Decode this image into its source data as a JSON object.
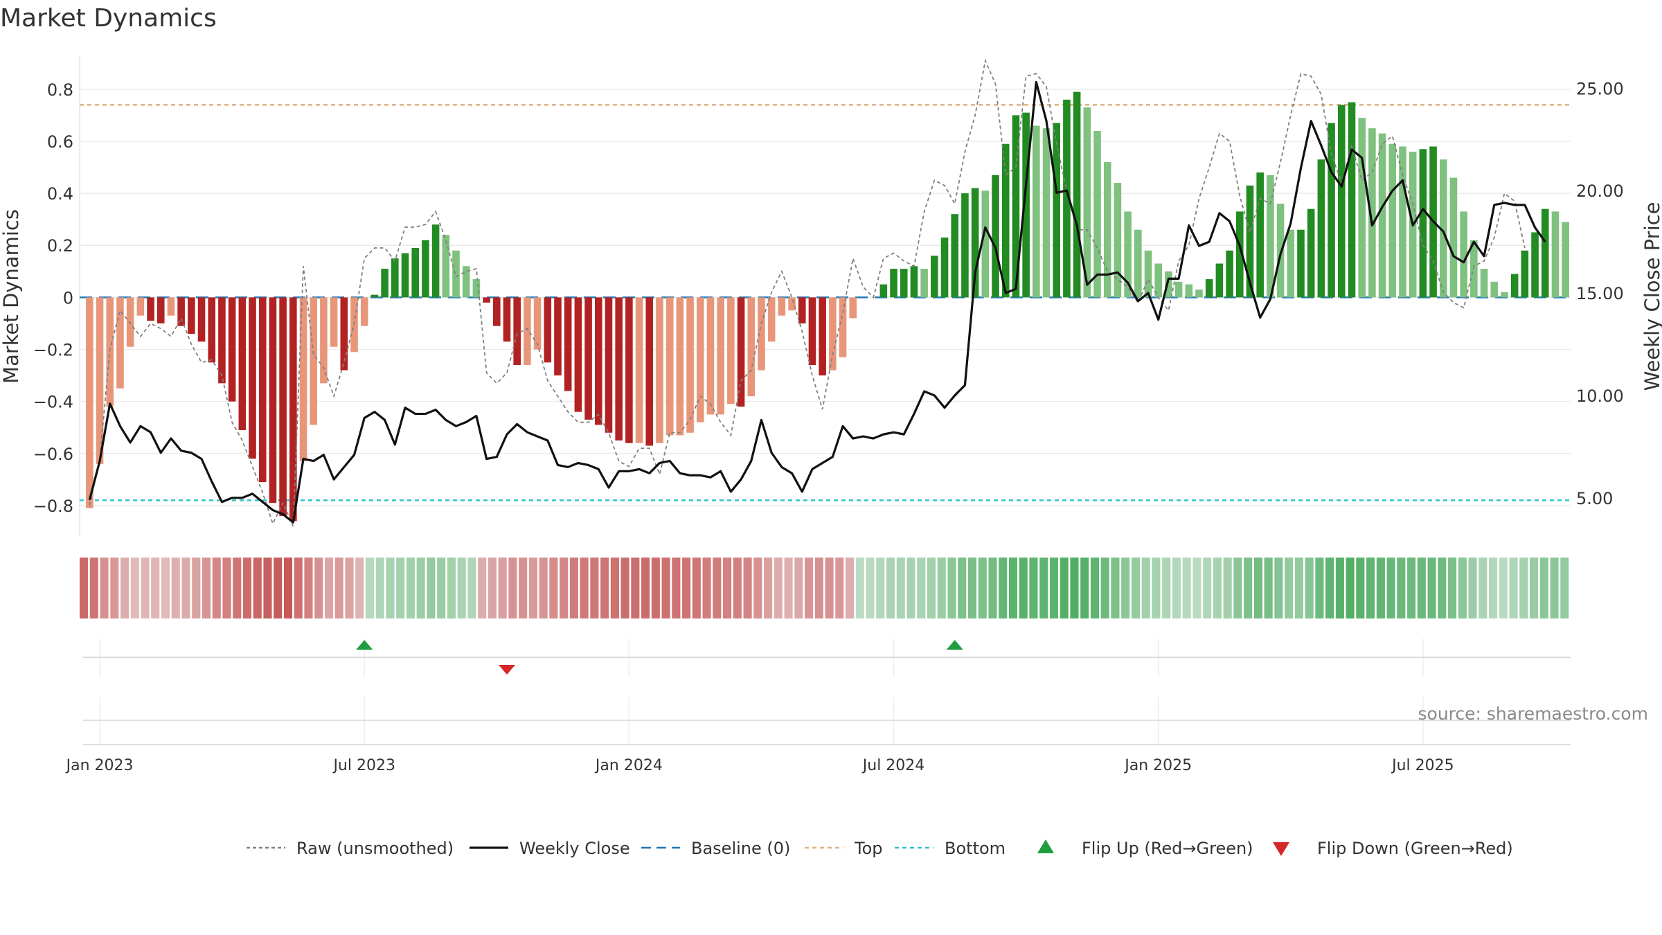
{
  "title": "Market Dynamics",
  "source_note": "source: sharemaestro.com",
  "chart_data": {
    "type": "bar",
    "ylabel_left": "Market Dynamics",
    "ylabel_right": "Weekly Close Price",
    "ylim_left": [
      -0.92,
      0.93
    ],
    "ylim_right": [
      3.1,
      26.6
    ],
    "yticks_left": [
      {
        "value": 0.8,
        "label": "0.8"
      },
      {
        "value": 0.6,
        "label": "0.6"
      },
      {
        "value": 0.4,
        "label": "0.4"
      },
      {
        "value": 0.2,
        "label": "0.2"
      },
      {
        "value": 0,
        "label": "0"
      },
      {
        "value": -0.2,
        "label": "−0.2"
      },
      {
        "value": -0.4,
        "label": "−0.4"
      },
      {
        "value": -0.6,
        "label": "−0.6"
      },
      {
        "value": -0.8,
        "label": "−0.8"
      }
    ],
    "yticks_right": [
      {
        "value": 25,
        "label": "25.00"
      },
      {
        "value": 20,
        "label": "20.00"
      },
      {
        "value": 15,
        "label": "15.00"
      },
      {
        "value": 10,
        "label": "10.00"
      },
      {
        "value": 5,
        "label": "5.00"
      }
    ],
    "xticks": [
      {
        "week": 1,
        "label": "Jan 2023"
      },
      {
        "week": 27,
        "label": "Jul 2023"
      },
      {
        "week": 53,
        "label": "Jan 2024"
      },
      {
        "week": 79,
        "label": "Jul 2024"
      },
      {
        "week": 105,
        "label": "Jan 2025"
      },
      {
        "week": 131,
        "label": "Jul 2025"
      }
    ],
    "first_week": "2022-12-26",
    "reference_lines": {
      "top": 0.74,
      "bottom": -0.78,
      "baseline": 0
    },
    "colors": {
      "neg_strong": "#b22222",
      "neg_weak": "#e8967a",
      "pos_strong": "#228b22",
      "pos_weak": "#7fc17f",
      "raw": "#808080",
      "close": "#111111",
      "baseline": "#1f77b4",
      "top": "#e0b080",
      "bottom": "#2ec4c4",
      "flip_up": "#1e9e40",
      "flip_down": "#d62728"
    },
    "series_bars": [
      -0.81,
      -0.64,
      -0.42,
      -0.35,
      -0.19,
      -0.07,
      -0.09,
      -0.1,
      -0.07,
      -0.11,
      -0.14,
      -0.17,
      -0.25,
      -0.33,
      -0.4,
      -0.51,
      -0.62,
      -0.71,
      -0.79,
      -0.84,
      -0.86,
      -0.63,
      -0.49,
      -0.33,
      -0.19,
      -0.28,
      -0.21,
      -0.11,
      0.01,
      0.11,
      0.15,
      0.17,
      0.19,
      0.22,
      0.28,
      0.24,
      0.18,
      0.12,
      0.07,
      -0.02,
      -0.11,
      -0.17,
      -0.26,
      -0.26,
      -0.2,
      -0.25,
      -0.3,
      -0.36,
      -0.44,
      -0.47,
      -0.49,
      -0.52,
      -0.55,
      -0.56,
      -0.56,
      -0.57,
      -0.56,
      -0.53,
      -0.53,
      -0.52,
      -0.48,
      -0.45,
      -0.45,
      -0.41,
      -0.42,
      -0.38,
      -0.28,
      -0.17,
      -0.07,
      -0.05,
      -0.1,
      -0.26,
      -0.3,
      -0.28,
      -0.23,
      -0.08,
      0,
      0,
      0.05,
      0.11,
      0.11,
      0.12,
      0.11,
      0.16,
      0.23,
      0.32,
      0.4,
      0.42,
      0.41,
      0.47,
      0.59,
      0.7,
      0.71,
      0.66,
      0.65,
      0.67,
      0.76,
      0.79,
      0.73,
      0.64,
      0.52,
      0.44,
      0.33,
      0.26,
      0.18,
      0.13,
      0.1,
      0.06,
      0.05,
      0.03,
      0.07,
      0.13,
      0.18,
      0.33,
      0.43,
      0.48,
      0.47,
      0.36,
      0.26,
      0.26,
      0.34,
      0.53,
      0.67,
      0.74,
      0.75,
      0.69,
      0.65,
      0.63,
      0.59,
      0.58,
      0.56,
      0.57,
      0.58,
      0.53,
      0.46,
      0.33,
      0.22,
      0.11,
      0.06,
      0.02,
      0.09,
      0.18,
      0.25,
      0.34,
      0.33,
      0.29
    ],
    "series_raw": [
      -0.8,
      -0.62,
      -0.2,
      -0.05,
      -0.1,
      -0.15,
      -0.1,
      -0.12,
      -0.15,
      -0.08,
      -0.18,
      -0.25,
      -0.24,
      -0.3,
      -0.48,
      -0.55,
      -0.65,
      -0.75,
      -0.87,
      -0.79,
      -0.88,
      0.12,
      -0.22,
      -0.27,
      -0.38,
      -0.25,
      -0.1,
      0.15,
      0.19,
      0.19,
      0.14,
      0.27,
      0.27,
      0.28,
      0.33,
      0.22,
      0.08,
      0.1,
      0.11,
      -0.29,
      -0.33,
      -0.29,
      -0.14,
      -0.12,
      -0.18,
      -0.32,
      -0.38,
      -0.44,
      -0.48,
      -0.48,
      -0.45,
      -0.52,
      -0.63,
      -0.65,
      -0.58,
      -0.58,
      -0.68,
      -0.52,
      -0.52,
      -0.47,
      -0.38,
      -0.41,
      -0.48,
      -0.53,
      -0.32,
      -0.28,
      -0.1,
      0.02,
      0.1,
      0.0,
      -0.13,
      -0.3,
      -0.43,
      -0.22,
      -0.06,
      0.15,
      0.04,
      0.0,
      0.15,
      0.17,
      0.14,
      0.12,
      0.33,
      0.45,
      0.43,
      0.36,
      0.56,
      0.7,
      0.91,
      0.82,
      0.47,
      0.5,
      0.85,
      0.86,
      0.81,
      0.59,
      0.41,
      0.26,
      0.26,
      0.19,
      0.1,
      0.07,
      0.04,
      -0.02,
      0.07,
      0.0,
      -0.05,
      0.14,
      0.2,
      0.38,
      0.5,
      0.63,
      0.6,
      0.39,
      0.25,
      0.38,
      0.36,
      0.52,
      0.7,
      0.86,
      0.85,
      0.78,
      0.55,
      0.44,
      0.58,
      0.45,
      0.48,
      0.59,
      0.62,
      0.47,
      0.36,
      0.2,
      0.14,
      0.02,
      -0.02,
      -0.04,
      0.12,
      0.14,
      0.23,
      0.4,
      0.37,
      0.19
    ],
    "series_close": [
      4.9,
      6.8,
      9.6,
      8.5,
      7.7,
      8.5,
      8.2,
      7.2,
      7.9,
      7.3,
      7.2,
      6.9,
      5.8,
      4.8,
      5.0,
      5.0,
      5.2,
      4.8,
      4.4,
      4.2,
      3.8,
      6.9,
      6.8,
      7.1,
      5.9,
      6.5,
      7.1,
      8.9,
      9.2,
      8.8,
      7.6,
      9.4,
      9.1,
      9.1,
      9.3,
      8.8,
      8.5,
      8.7,
      9.0,
      6.9,
      7.0,
      8.1,
      8.6,
      8.2,
      8.0,
      7.8,
      6.6,
      6.5,
      6.7,
      6.6,
      6.4,
      5.5,
      6.3,
      6.3,
      6.4,
      6.2,
      6.7,
      6.8,
      6.2,
      6.1,
      6.1,
      6.0,
      6.3,
      5.3,
      5.9,
      6.8,
      8.8,
      7.2,
      6.5,
      6.2,
      5.3,
      6.4,
      6.7,
      7.0,
      8.5,
      7.9,
      8.0,
      7.9,
      8.1,
      8.2,
      8.1,
      9.1,
      10.2,
      10.0,
      9.4,
      10.0,
      10.5,
      16.0,
      18.2,
      17.2,
      15.0,
      15.2,
      20.3,
      25.3,
      23.4,
      19.9,
      20.0,
      18.3,
      15.4,
      15.9,
      15.9,
      16.0,
      15.5,
      14.6,
      15.0,
      13.7,
      15.7,
      15.7,
      18.3,
      17.3,
      17.5,
      18.9,
      18.5,
      17.3,
      15.5,
      13.8,
      14.7,
      16.9,
      18.4,
      21.1,
      23.4,
      22.2,
      20.9,
      20.2,
      22.0,
      21.6,
      18.3,
      19.2,
      20.0,
      20.5,
      18.3,
      19.1,
      18.5,
      18.0,
      16.8,
      16.5,
      17.5,
      16.8,
      19.3,
      19.4,
      19.3,
      19.3,
      18.2,
      17.5
    ],
    "heatmap_values": [
      -0.8,
      -0.72,
      -0.5,
      -0.45,
      -0.3,
      -0.2,
      -0.24,
      -0.24,
      -0.2,
      -0.28,
      -0.32,
      -0.38,
      -0.48,
      -0.58,
      -0.62,
      -0.72,
      -0.78,
      -0.82,
      -0.88,
      -0.9,
      -0.92,
      -0.75,
      -0.64,
      -0.5,
      -0.35,
      -0.44,
      -0.36,
      -0.25,
      0.2,
      0.25,
      0.3,
      0.32,
      0.34,
      0.38,
      0.44,
      0.4,
      0.34,
      0.28,
      0.24,
      -0.3,
      -0.36,
      -0.4,
      -0.5,
      -0.5,
      -0.44,
      -0.48,
      -0.54,
      -0.58,
      -0.66,
      -0.68,
      -0.7,
      -0.72,
      -0.74,
      -0.76,
      -0.76,
      -0.78,
      -0.76,
      -0.74,
      -0.74,
      -0.72,
      -0.7,
      -0.66,
      -0.66,
      -0.62,
      -0.64,
      -0.6,
      -0.5,
      -0.4,
      -0.3,
      -0.28,
      -0.34,
      -0.48,
      -0.52,
      -0.5,
      -0.45,
      -0.3,
      0.15,
      0.18,
      0.22,
      0.28,
      0.28,
      0.3,
      0.28,
      0.34,
      0.4,
      0.5,
      0.6,
      0.62,
      0.6,
      0.66,
      0.76,
      0.82,
      0.84,
      0.8,
      0.8,
      0.82,
      0.88,
      0.9,
      0.86,
      0.8,
      0.7,
      0.6,
      0.5,
      0.42,
      0.34,
      0.3,
      0.26,
      0.22,
      0.2,
      0.18,
      0.24,
      0.3,
      0.34,
      0.5,
      0.6,
      0.66,
      0.64,
      0.54,
      0.44,
      0.44,
      0.52,
      0.7,
      0.8,
      0.86,
      0.88,
      0.84,
      0.8,
      0.78,
      0.74,
      0.72,
      0.7,
      0.72,
      0.72,
      0.68,
      0.6,
      0.5,
      0.38,
      0.28,
      0.22,
      0.18,
      0.24,
      0.32,
      0.4,
      0.5,
      0.48,
      0.44
    ],
    "flips": [
      {
        "week": 27,
        "direction": "up"
      },
      {
        "week": 41,
        "direction": "down"
      },
      {
        "week": 85,
        "direction": "up"
      }
    ],
    "legend": {
      "placement": "bottom-center",
      "items": [
        {
          "key": "raw",
          "label": "Raw (unsmoothed)"
        },
        {
          "key": "close",
          "label": "Weekly Close"
        },
        {
          "key": "baseline",
          "label": "Baseline (0)"
        },
        {
          "key": "top",
          "label": "Top"
        },
        {
          "key": "bottom",
          "label": "Bottom"
        },
        {
          "key": "flip_up",
          "label": "Flip Up (Red→Green)"
        },
        {
          "key": "flip_down",
          "label": "Flip Down (Green→Red)"
        }
      ]
    },
    "grid": true
  }
}
